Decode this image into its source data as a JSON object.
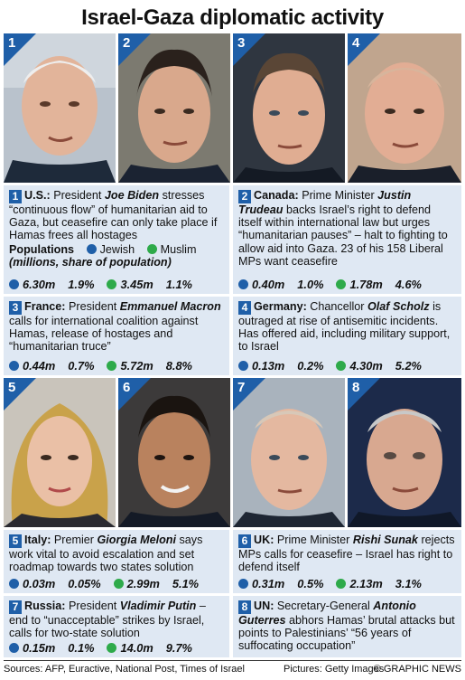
{
  "title": "Israel-Gaza diplomatic activity",
  "legend": {
    "populations": "Populations",
    "jewish": "Jewish",
    "muslim": "Muslim",
    "note": "(millions, share of population)"
  },
  "panels": [
    {
      "num": "1",
      "country": "U.S.:",
      "pre": "President ",
      "person": "Joe Biden",
      "post": " stresses “continuous flow” of humanitarian aid to Gaza, but ceasefire can only take place if Hamas frees all hostages",
      "jewish_m": "6.30m",
      "jewish_pct": "1.9%",
      "muslim_m": "3.45m",
      "muslim_pct": "1.1%"
    },
    {
      "num": "2",
      "country": "Canada:",
      "pre": "Prime Minister ",
      "person": "Justin Trudeau",
      "post": " backs Israel’s right to defend itself within international law but urges “humanitarian pauses” – halt to fighting to allow aid into Gaza. 23 of his 158 Liberal MPs want ceasefire",
      "jewish_m": "0.40m",
      "jewish_pct": "1.0%",
      "muslim_m": "1.78m",
      "muslim_pct": "4.6%"
    },
    {
      "num": "3",
      "country": "France:",
      "pre": "President ",
      "person": "Emmanuel Macron",
      "post": " calls for international coalition against Hamas, release of hostages and “humanitarian truce”",
      "jewish_m": "0.44m",
      "jewish_pct": "0.7%",
      "muslim_m": "5.72m",
      "muslim_pct": "8.8%"
    },
    {
      "num": "4",
      "country": "Germany:",
      "pre": "Chancellor ",
      "person": "Olaf Scholz",
      "post": " is outraged at rise of antisemitic incidents. Has offered aid, including military support, to Israel",
      "jewish_m": "0.13m",
      "jewish_pct": "0.2%",
      "muslim_m": "4.30m",
      "muslim_pct": "5.2%"
    },
    {
      "num": "5",
      "country": "Italy:",
      "pre": "Premier ",
      "person": "Giorgia Meloni",
      "post": " says work vital to avoid escalation and set roadmap towards two states solution",
      "jewish_m": "0.03m",
      "jewish_pct": "0.05%",
      "muslim_m": "2.99m",
      "muslim_pct": "5.1%"
    },
    {
      "num": "6",
      "country": "UK:",
      "pre": "Prime Minister ",
      "person": "Rishi Sunak",
      "post": " rejects MPs calls for ceasefire – Israel has right to defend itself",
      "jewish_m": "0.31m",
      "jewish_pct": "0.5%",
      "muslim_m": "2.13m",
      "muslim_pct": "3.1%"
    },
    {
      "num": "7",
      "country": "Russia:",
      "pre": "President ",
      "person": "Vladimir Putin",
      "post": " – end to “unacceptable” strikes by Israel, calls for two-state solution",
      "jewish_m": "0.15m",
      "jewish_pct": "0.1%",
      "muslim_m": "14.0m",
      "muslim_pct": "9.7%"
    },
    {
      "num": "8",
      "country": "UN:",
      "pre": "Secretary-General ",
      "person": "Antonio Guterres",
      "post": " abhors Hamas’ brutal attacks but points to Palestinians’ “56 years of suffocating occupation”"
    }
  ],
  "photo_nums": [
    "1",
    "2",
    "3",
    "4",
    "5",
    "6",
    "7",
    "8"
  ],
  "footer": {
    "sources": "Sources: AFP, Euractive, National Post, Times of Israel",
    "pictures": "Pictures: Getty Images",
    "credit": "© GRAPHIC NEWS"
  },
  "colors": {
    "accent": "#1f5fa8",
    "muslim": "#2eaa4a",
    "panel_bg": "#dfe8f3"
  }
}
